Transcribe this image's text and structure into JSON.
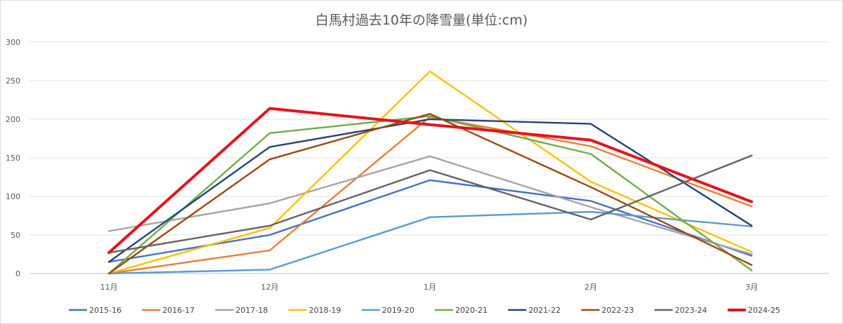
{
  "chart_data": {
    "type": "line",
    "title": "白馬村過去10年の降雪量(単位:cm)",
    "xlabel": "",
    "ylabel": "",
    "categories": [
      "11月",
      "12月",
      "1月",
      "2月",
      "3月"
    ],
    "ylim": [
      0,
      300
    ],
    "yticks": [
      "0",
      "50",
      "100",
      "150",
      "200",
      "250",
      "300"
    ],
    "grid": true,
    "legend_position": "bottom",
    "series": [
      {
        "name": "2015-16",
        "color": "#4472c4",
        "values": [
          15,
          50,
          121,
          94,
          23
        ]
      },
      {
        "name": "2016-17",
        "color": "#ed7d31",
        "values": [
          0,
          30,
          203,
          165,
          87
        ]
      },
      {
        "name": "2017-18",
        "color": "#a5a5a5",
        "values": [
          55,
          91,
          152,
          86,
          25
        ]
      },
      {
        "name": "2018-19",
        "color": "#ffc000",
        "values": [
          0,
          59,
          262,
          119,
          28
        ]
      },
      {
        "name": "2019-20",
        "color": "#5b9bd5",
        "values": [
          0,
          5,
          73,
          80,
          61
        ]
      },
      {
        "name": "2020-21",
        "color": "#70ad47",
        "values": [
          0,
          182,
          204,
          155,
          4
        ]
      },
      {
        "name": "2021-22",
        "color": "#264478",
        "values": [
          15,
          164,
          200,
          194,
          62
        ]
      },
      {
        "name": "2022-23",
        "color": "#9e480e",
        "values": [
          0,
          148,
          207,
          112,
          11
        ]
      },
      {
        "name": "2023-24",
        "color": "#636363",
        "values": [
          27,
          62,
          134,
          70,
          153
        ]
      },
      {
        "name": "2024-25",
        "color": "#e4141b",
        "values": [
          27,
          214,
          193,
          173,
          93
        ]
      }
    ]
  }
}
